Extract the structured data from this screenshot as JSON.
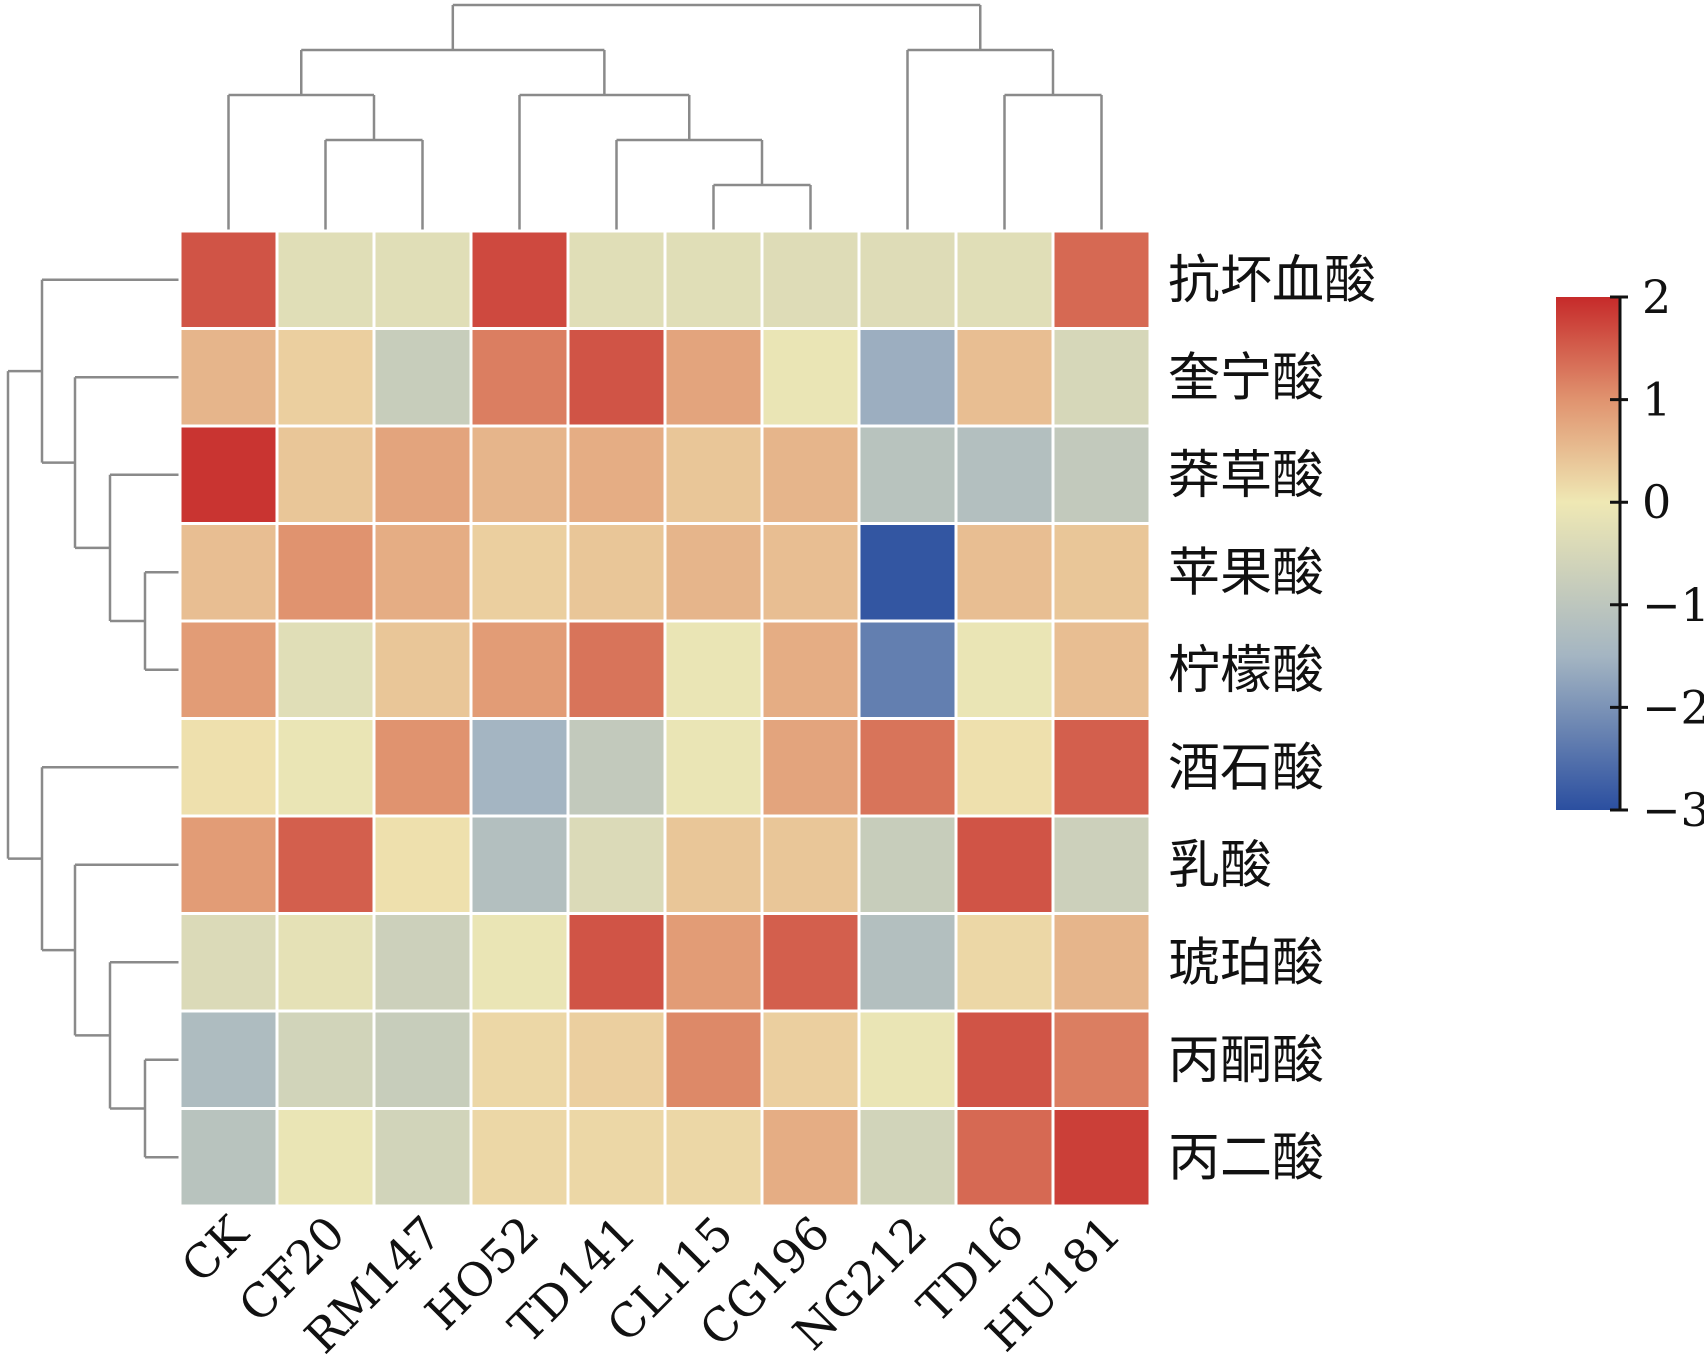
{
  "chart_data": {
    "type": "heatmap",
    "title": "",
    "columns": [
      "CK",
      "CF20",
      "RM147",
      "HO52",
      "TD141",
      "CL115",
      "CG196",
      "NG212",
      "TD16",
      "HU181"
    ],
    "rows": [
      "抗坏血酸",
      "奎宁酸",
      "莽草酸",
      "苹果酸",
      "柠檬酸",
      "酒石酸",
      "乳酸",
      "琥珀酸",
      "丙酮酸",
      "丙二酸"
    ],
    "values": [
      [
        1.6,
        -0.3,
        -0.3,
        1.7,
        -0.3,
        -0.3,
        -0.35,
        -0.35,
        -0.3,
        1.4
      ],
      [
        0.6,
        0.3,
        -0.8,
        1.2,
        1.6,
        0.8,
        -0.1,
        -1.6,
        0.5,
        -0.5
      ],
      [
        1.9,
        0.4,
        0.8,
        0.6,
        0.7,
        0.4,
        0.6,
        -1.1,
        -1.2,
        -0.9
      ],
      [
        0.5,
        1.0,
        0.7,
        0.3,
        0.4,
        0.6,
        0.5,
        -2.9,
        0.5,
        0.4
      ],
      [
        0.9,
        -0.3,
        0.4,
        0.9,
        1.3,
        -0.1,
        0.7,
        -2.3,
        -0.1,
        0.5
      ],
      [
        0.1,
        -0.1,
        1.0,
        -1.5,
        -0.9,
        -0.1,
        0.8,
        1.3,
        0.1,
        1.5
      ],
      [
        0.9,
        1.5,
        0.1,
        -1.2,
        -0.4,
        0.4,
        0.4,
        -0.8,
        1.6,
        -0.7
      ],
      [
        -0.4,
        -0.2,
        -0.7,
        -0.1,
        1.6,
        0.9,
        1.5,
        -1.2,
        0.2,
        0.6
      ],
      [
        -1.3,
        -0.6,
        -0.8,
        0.2,
        0.3,
        1.1,
        0.3,
        -0.1,
        1.6,
        1.2
      ],
      [
        -1.1,
        -0.1,
        -0.6,
        0.2,
        0.2,
        0.2,
        0.7,
        -0.6,
        1.4,
        1.8
      ]
    ],
    "colorbar": {
      "min": -3,
      "max": 2,
      "ticks": [
        2,
        1,
        0,
        -1,
        -2,
        -3
      ],
      "tick_labels": [
        "2",
        "1",
        "0",
        "−1",
        "−2",
        "−3"
      ],
      "colors": {
        "low": "#2b4fa0",
        "mid_low": "#a4b5c2",
        "neutral": "#efe8b4",
        "mid_high": "#e0936f",
        "high": "#c62a2a"
      }
    },
    "dendrogram_color": "#8a8a8a",
    "grid_color": "#ffffff"
  }
}
